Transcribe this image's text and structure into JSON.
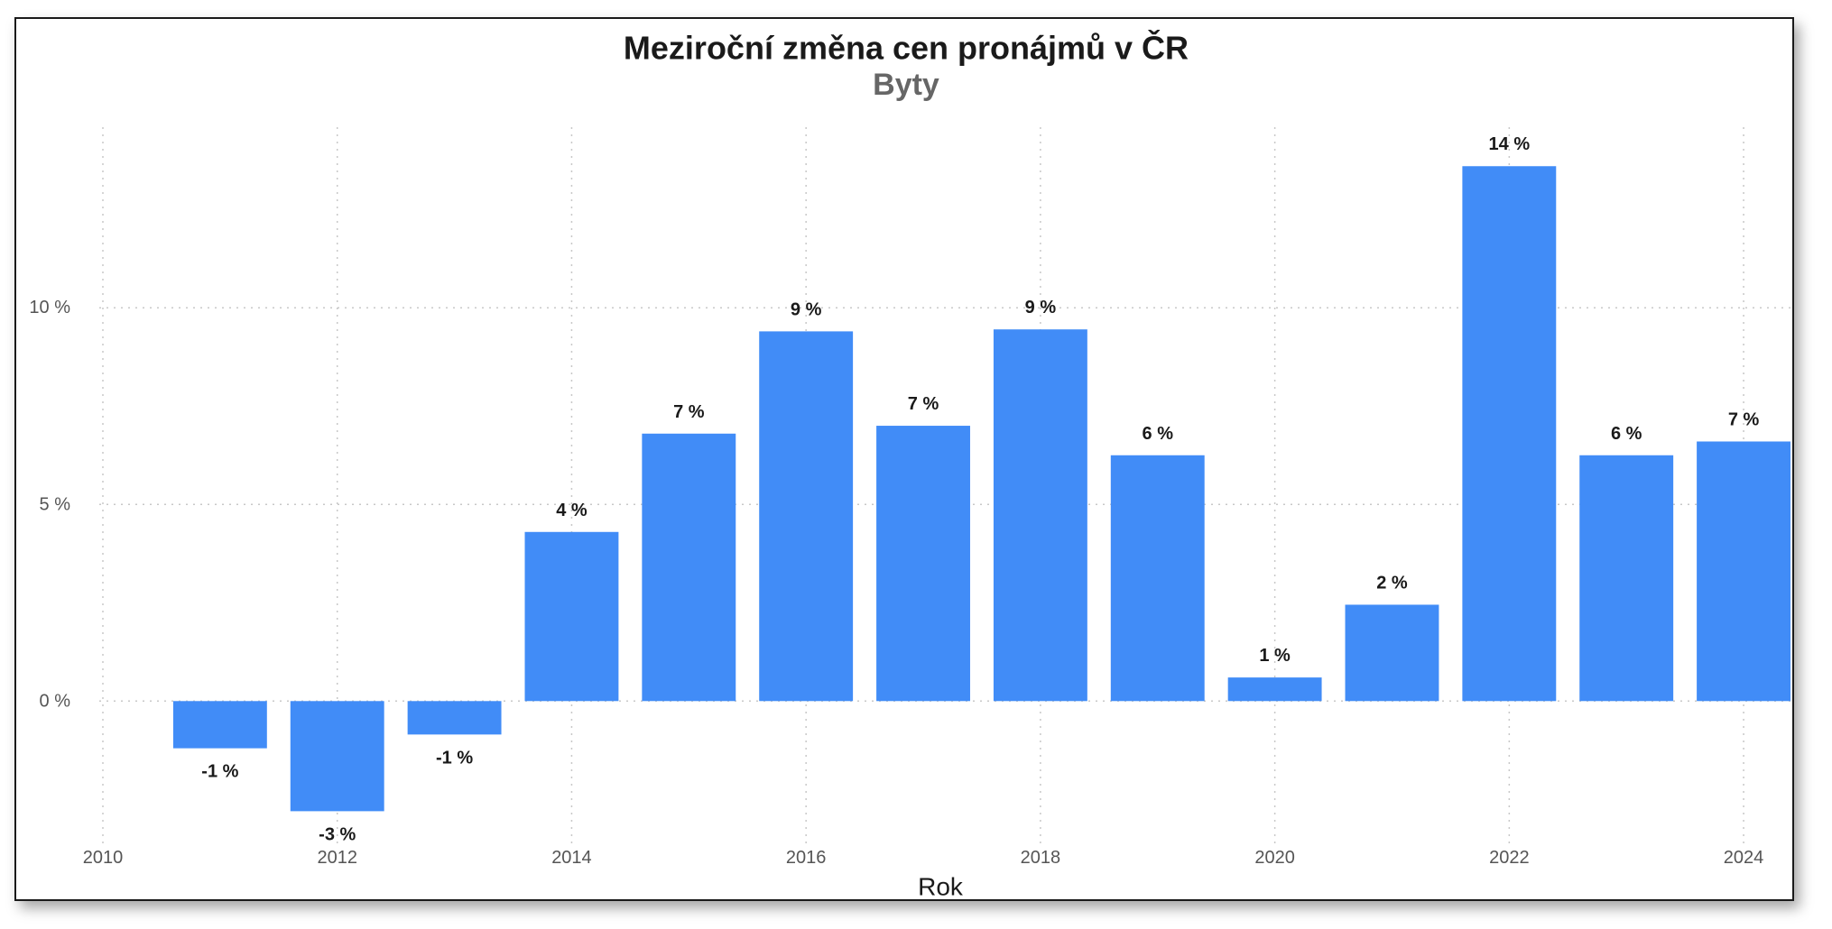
{
  "chart_data": {
    "type": "bar",
    "title": "Meziroční změna cen pronájmů v ČR",
    "subtitle": "Byty",
    "xlabel": "Rok",
    "ylabel": "",
    "categories": [
      2011,
      2012,
      2013,
      2014,
      2015,
      2016,
      2017,
      2018,
      2019,
      2020,
      2021,
      2022,
      2023,
      2024
    ],
    "values": [
      -1.2,
      -2.8,
      -0.85,
      4.3,
      6.8,
      9.4,
      7.0,
      9.45,
      6.25,
      0.6,
      2.45,
      13.6,
      6.25,
      6.6
    ],
    "data_labels": [
      "-1 %",
      "-3 %",
      "-1 %",
      "4 %",
      "7 %",
      "9 %",
      "7 %",
      "9 %",
      "6 %",
      "1 %",
      "2 %",
      "14 %",
      "6 %",
      "7 %"
    ],
    "x_ticks": [
      "2010",
      "2012",
      "2014",
      "2016",
      "2018",
      "2020",
      "2022",
      "2024"
    ],
    "y_ticks": [
      {
        "value": 0,
        "label": "0 %"
      },
      {
        "value": 5,
        "label": "5 %"
      },
      {
        "value": 10,
        "label": "10 %"
      }
    ],
    "xlim": [
      2010,
      2024.4
    ],
    "ylim": [
      -3.8,
      14.5
    ],
    "grid": true,
    "bar_color": "#418cf7"
  }
}
